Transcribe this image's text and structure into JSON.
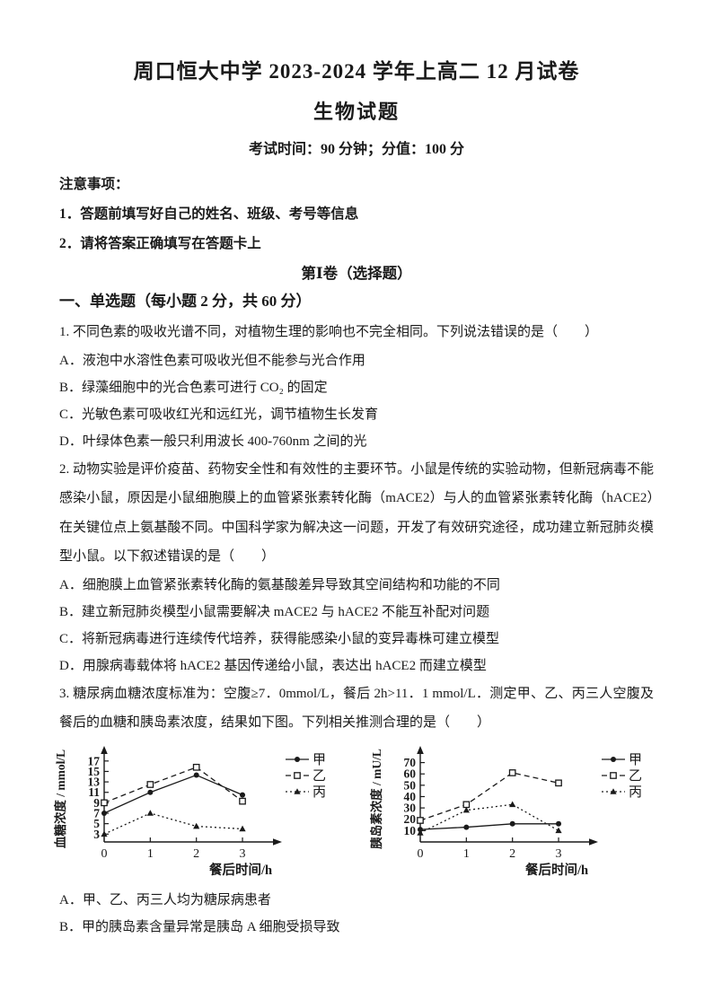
{
  "page": {
    "title": "周口恒大中学 2023-2024 学年上高二 12 月试卷",
    "subtitle": "生物试题",
    "exam_info": "考试时间：90 分钟；分值：100 分",
    "notice_heading": "注意事项：",
    "notice_items": [
      "1．答题前填写好自己的姓名、班级、考号等信息",
      "2．请将答案正确填写在答题卡上"
    ],
    "section1_title": "第Ⅰ卷（选择题）",
    "section1_heading": "一、单选题（每小题 2 分，共 60 分）"
  },
  "questions": [
    {
      "text": "1. 不同色素的吸收光谱不同，对植物生理的影响也不完全相同。下列说法错误的是（　　）",
      "options": [
        "A．液泡中水溶性色素可吸收光但不能参与光合作用",
        "B．绿藻细胞中的光合色素可进行 CO₂ 的固定",
        "C．光敏色素可吸收红光和远红光，调节植物生长发育",
        "D．叶绿体色素一般只利用波长 400-760nm 之间的光"
      ]
    },
    {
      "text": "2. 动物实验是评价疫苗、药物安全性和有效性的主要环节。小鼠是传统的实验动物，但新冠病毒不能感染小鼠，原因是小鼠细胞膜上的血管紧张素转化酶（mACE2）与人的血管紧张素转化酶（hACE2）在关键位点上氨基酸不同。中国科学家为解决这一问题，开发了有效研究途径，成功建立新冠肺炎模型小鼠。以下叙述错误的是（　　）",
      "options": [
        "A．细胞膜上血管紧张素转化酶的氨基酸差异导致其空间结构和功能的不同",
        "B．建立新冠肺炎模型小鼠需要解决 mACE2 与 hACE2 不能互补配对问题",
        "C．将新冠病毒进行连续传代培养，获得能感染小鼠的变异毒株可建立模型",
        "D．用腺病毒载体将 hACE2 基因传递给小鼠，表达出 hACE2 而建立模型"
      ]
    },
    {
      "text": "3. 糖尿病血糖浓度标准为：空腹≥7．0mmol/L，餐后 2h>11．1 mmol/L．测定甲、乙、丙三人空腹及餐后的血糖和胰岛素浓度，结果如下图。下列相关推测合理的是（　　）",
      "options": [
        "A．甲、乙、丙三人均为糖尿病患者",
        "B．甲的胰岛素含量异常是胰岛 A 细胞受损导致"
      ]
    }
  ],
  "chart_data": [
    {
      "type": "line",
      "title": "",
      "ylabel": "血糖浓度 / mmol/L",
      "xlabel": "餐后时间/h",
      "x": [
        0,
        1,
        2,
        3
      ],
      "xticks": [
        0,
        1,
        2,
        3
      ],
      "yticks": [
        3,
        5,
        7,
        9,
        11,
        13,
        15,
        17
      ],
      "ylim": [
        1.5,
        18
      ],
      "grid": false,
      "legend_position": "top-right",
      "series": [
        {
          "name": "甲",
          "style": "solid",
          "marker": "circle-filled",
          "values": [
            7,
            11,
            14.3,
            10.5
          ]
        },
        {
          "name": "乙",
          "style": "dashed",
          "marker": "square-open",
          "values": [
            9,
            12.5,
            15.8,
            9.3
          ]
        },
        {
          "name": "丙",
          "style": "dotted",
          "marker": "triangle-filled",
          "values": [
            3,
            7,
            4.5,
            4
          ]
        }
      ],
      "line_color": "#1a1a1a"
    },
    {
      "type": "line",
      "title": "",
      "ylabel": "胰岛素浓度 / mU/L",
      "xlabel": "餐后时间/h",
      "x": [
        0,
        1,
        2,
        3
      ],
      "xticks": [
        0,
        1,
        2,
        3
      ],
      "yticks": [
        10,
        20,
        30,
        40,
        50,
        60,
        70
      ],
      "ylim": [
        0,
        76
      ],
      "grid": false,
      "legend_position": "top-right",
      "series": [
        {
          "name": "甲",
          "style": "solid",
          "marker": "circle-filled",
          "values": [
            11,
            13,
            16,
            16
          ]
        },
        {
          "name": "乙",
          "style": "dashed",
          "marker": "square-open",
          "values": [
            19,
            33,
            61,
            52
          ]
        },
        {
          "name": "丙",
          "style": "dotted",
          "marker": "triangle-filled",
          "values": [
            8,
            28,
            33,
            10
          ]
        }
      ],
      "line_color": "#1a1a1a"
    }
  ]
}
